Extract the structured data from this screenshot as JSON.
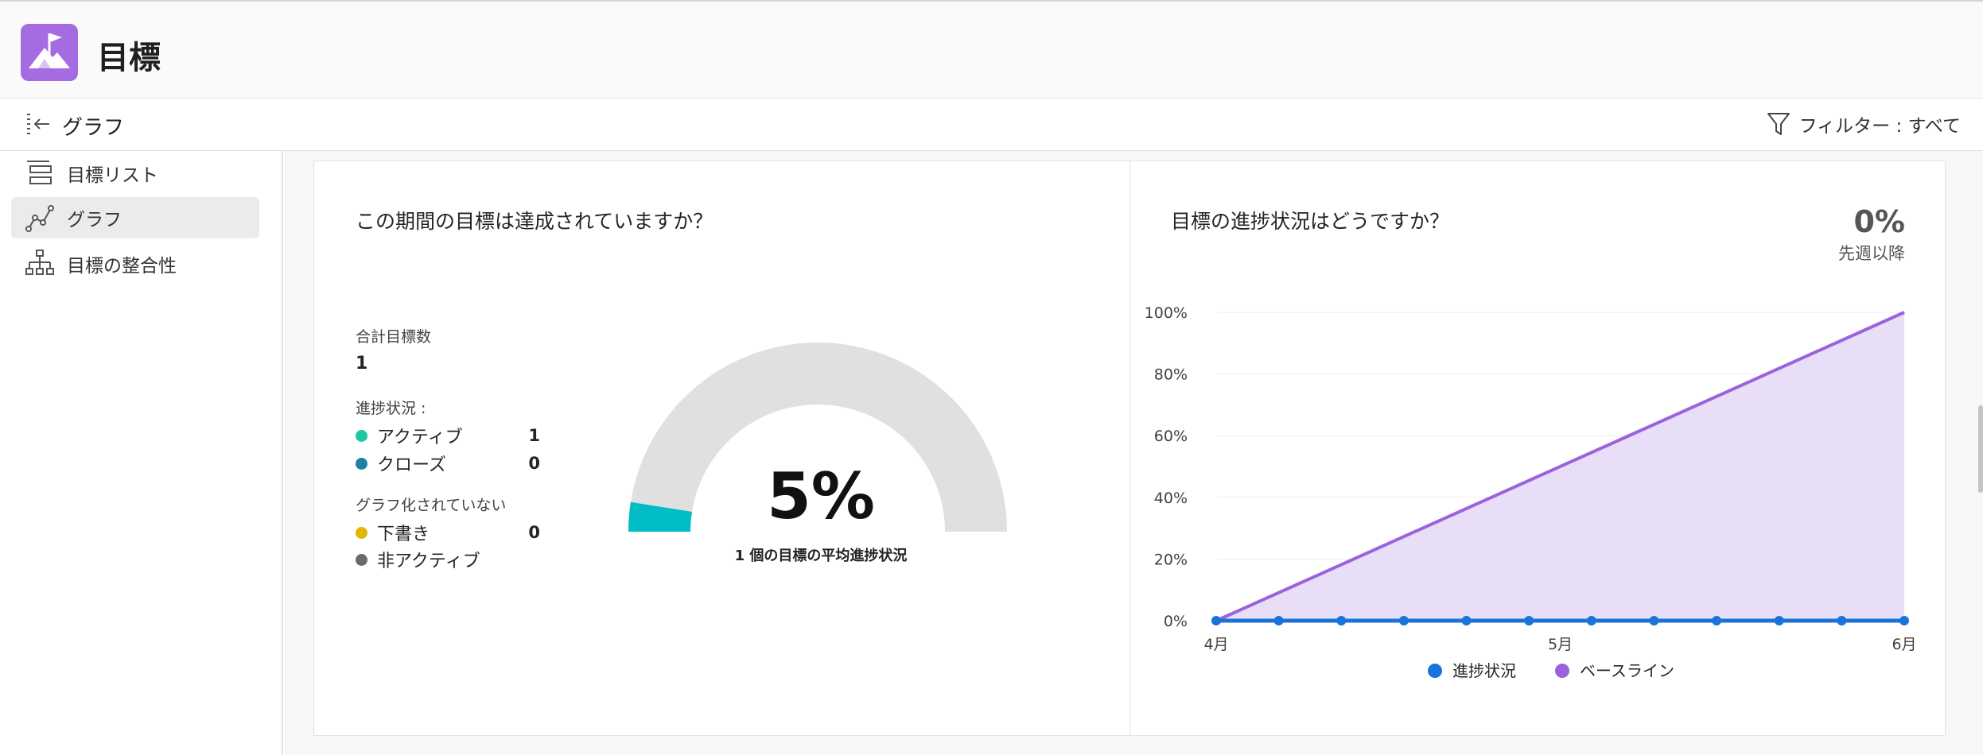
{
  "app": {
    "title": "目標",
    "icon": "goal-flag-icon",
    "brand_color": "#a56be0"
  },
  "toolbar": {
    "view_title": "グラフ",
    "filter_label": "フィルター : すべて"
  },
  "sidebar": {
    "items": [
      {
        "label": "目標リスト",
        "icon": "list-icon"
      },
      {
        "label": "グラフ",
        "icon": "chart-icon",
        "active": true
      },
      {
        "label": "目標の整合性",
        "icon": "hierarchy-icon"
      }
    ]
  },
  "summary": {
    "question": "この期間の目標は達成されていますか？",
    "total_label": "合計目標数",
    "total_value": "1",
    "progress_label": "進捗状況 :",
    "statuses": [
      {
        "name": "アクティブ",
        "count": "1",
        "color": "#1fc8a5"
      },
      {
        "name": "クローズ",
        "count": "0",
        "color": "#1f7fa6"
      }
    ],
    "ungraphed_label": "グラフ化されていない",
    "ungraphed": [
      {
        "name": "下書き",
        "count": "0",
        "color": "#e3b500"
      },
      {
        "name": "非アクティブ",
        "count": "",
        "color": "#6b6b6b"
      }
    ],
    "gauge_percent_text": "5%",
    "gauge_value": 0.05,
    "gauge_caption": "1 個の目標の平均進捗状況",
    "gauge_fill_color": "#00bcc4",
    "gauge_track_color": "#e0e0e0"
  },
  "trend": {
    "question": "目標の進捗状況はどうですか？",
    "change_value": "0%",
    "change_label": "先週以降"
  },
  "chart_data": {
    "type": "line",
    "title": "",
    "xlabel": "",
    "ylabel": "",
    "x_tick_labels": [
      "4月",
      "5月",
      "6月"
    ],
    "y_tick_labels": [
      "0%",
      "20%",
      "40%",
      "60%",
      "80%",
      "100%"
    ],
    "ylim": [
      0,
      100
    ],
    "grid": true,
    "legend_position": "bottom",
    "series": [
      {
        "name": "進捗状況",
        "color": "#1a73d9",
        "values": [
          0,
          0,
          0,
          0,
          0,
          0,
          0,
          0,
          0,
          0,
          0,
          0
        ]
      },
      {
        "name": "ベースライン",
        "color": "#9a63dd",
        "fill": "#e9def7",
        "values": [
          0,
          100
        ]
      }
    ]
  }
}
